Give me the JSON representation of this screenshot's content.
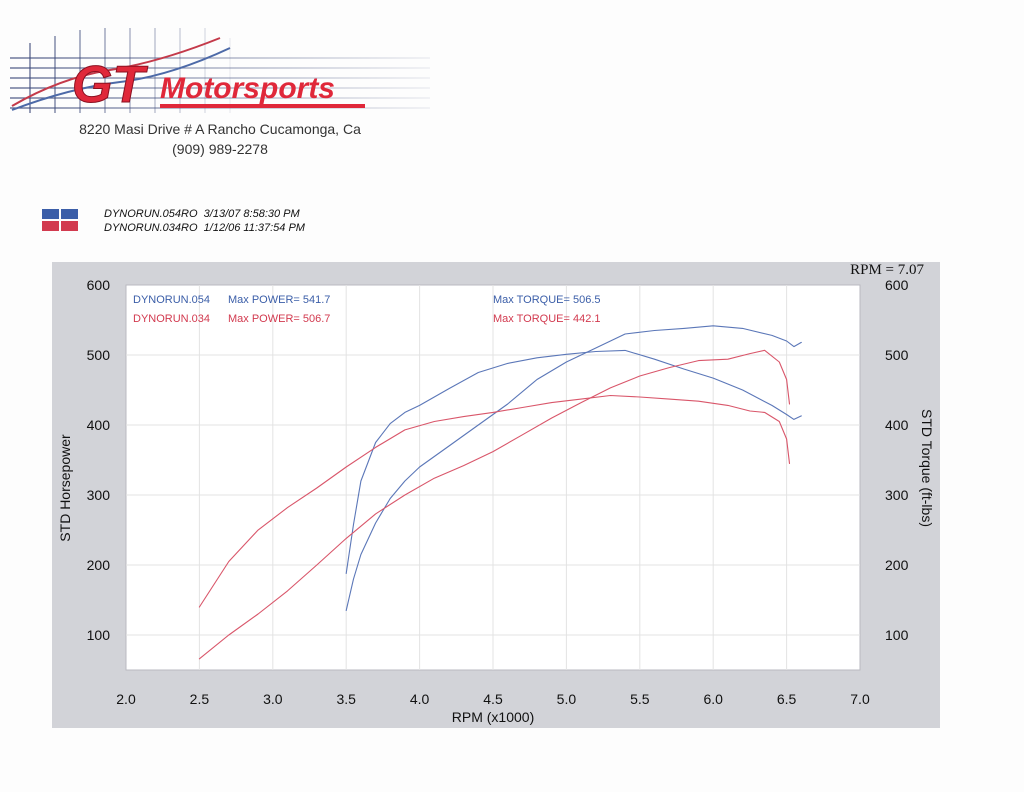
{
  "header": {
    "brand_gt": "GT",
    "brand_name": "Motorsports",
    "address_line1": "8220 Masi Drive # A Rancho Cucamonga, Ca",
    "address_line2": "(909) 989-2278"
  },
  "runs": [
    {
      "label": "DYNORUN.054RO",
      "date": "3/13/07 8:58:30 PM",
      "color": "#3b5ea8"
    },
    {
      "label": "DYNORUN.034RO",
      "date": "1/12/06 11:37:54 PM",
      "color": "#d23a4f"
    }
  ],
  "colors": {
    "run_054": "#5b77b8",
    "run_034": "#d9566a",
    "panel": "#d2d3d8",
    "plot_bg": "#ffffff",
    "grid": "#e3e3e3",
    "logo_red": "#e0283a"
  },
  "chart_data": {
    "type": "line",
    "rpm_readout": "RPM = 7.07",
    "xlabel": "RPM (x1000)",
    "ylabel": "STD Horsepower",
    "y2label": "STD Torque (ft-lbs)",
    "xlim": [
      2.0,
      7.0
    ],
    "ylim": [
      50,
      600
    ],
    "x_ticks": [
      "2.0",
      "2.5",
      "3.0",
      "3.5",
      "4.0",
      "4.5",
      "5.0",
      "5.5",
      "6.0",
      "6.5",
      "7.0"
    ],
    "y_ticks": [
      "100",
      "200",
      "300",
      "400",
      "500",
      "600"
    ],
    "grid": true,
    "annotations": [
      {
        "run": "DYNORUN.054",
        "power": "Max POWER= 541.7",
        "torque": "Max TORQUE= 506.5"
      },
      {
        "run": "DYNORUN.034",
        "power": "Max POWER= 506.7",
        "torque": "Max TORQUE= 442.1"
      }
    ],
    "series": [
      {
        "name": "DYNORUN.054",
        "measure": "horsepower",
        "color": "#5b77b8",
        "x": [
          3.5,
          3.55,
          3.6,
          3.7,
          3.8,
          3.9,
          4.0,
          4.2,
          4.4,
          4.6,
          4.8,
          5.0,
          5.2,
          5.4,
          5.6,
          5.8,
          6.0,
          6.2,
          6.4,
          6.5,
          6.55,
          6.6
        ],
        "y": [
          135,
          180,
          215,
          260,
          295,
          320,
          340,
          370,
          400,
          430,
          465,
          490,
          510,
          530,
          535,
          538,
          541.7,
          538,
          528,
          520,
          512,
          518
        ]
      },
      {
        "name": "DYNORUN.054",
        "measure": "torque",
        "color": "#5b77b8",
        "x": [
          3.5,
          3.55,
          3.6,
          3.7,
          3.8,
          3.9,
          4.0,
          4.2,
          4.4,
          4.6,
          4.8,
          5.0,
          5.2,
          5.4,
          5.6,
          5.8,
          6.0,
          6.2,
          6.4,
          6.5,
          6.55,
          6.6
        ],
        "y": [
          188,
          258,
          320,
          375,
          402,
          418,
          428,
          452,
          475,
          488,
          496,
          501,
          505,
          506.5,
          494,
          480,
          467,
          450,
          428,
          415,
          408,
          413
        ]
      },
      {
        "name": "DYNORUN.034",
        "measure": "horsepower",
        "color": "#d9566a",
        "x": [
          2.5,
          2.7,
          2.9,
          3.1,
          3.3,
          3.5,
          3.7,
          3.9,
          4.1,
          4.3,
          4.5,
          4.7,
          4.9,
          5.1,
          5.3,
          5.5,
          5.7,
          5.9,
          6.1,
          6.25,
          6.35,
          6.45,
          6.5,
          6.52
        ],
        "y": [
          66,
          100,
          130,
          163,
          200,
          238,
          273,
          300,
          324,
          342,
          362,
          386,
          410,
          432,
          453,
          470,
          482,
          492,
          494,
          502,
          506.7,
          490,
          465,
          430
        ]
      },
      {
        "name": "DYNORUN.034",
        "measure": "torque",
        "color": "#d9566a",
        "x": [
          2.5,
          2.7,
          2.9,
          3.1,
          3.3,
          3.5,
          3.7,
          3.9,
          4.1,
          4.3,
          4.5,
          4.7,
          4.9,
          5.1,
          5.3,
          5.5,
          5.7,
          5.9,
          6.1,
          6.25,
          6.35,
          6.45,
          6.5,
          6.52
        ],
        "y": [
          140,
          205,
          250,
          282,
          310,
          340,
          368,
          393,
          405,
          412,
          418,
          425,
          432,
          437,
          442.1,
          440,
          437,
          434,
          428,
          420,
          418,
          405,
          380,
          345
        ]
      }
    ]
  }
}
